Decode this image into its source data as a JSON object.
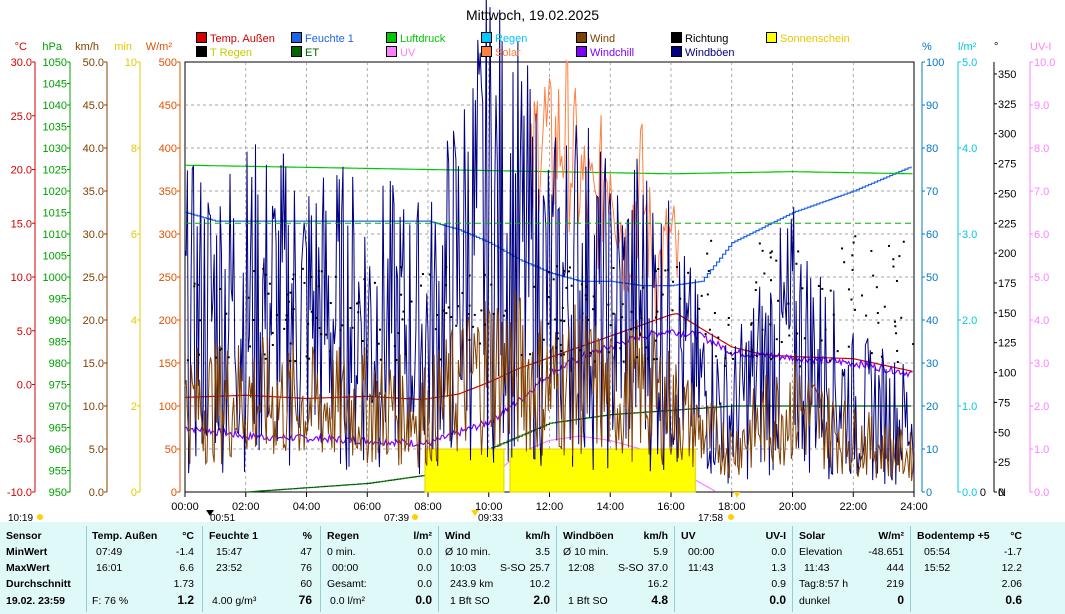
{
  "title": "Mittwoch, 19.02.2025",
  "legend": [
    {
      "label": "Temp. Außen",
      "color": "#d40000"
    },
    {
      "label": "T Regen",
      "color": "#000000",
      "text_color": "#c8c800"
    },
    {
      "label": "Feuchte 1",
      "color": "#1e64e6"
    },
    {
      "label": "ET",
      "color": "#006400"
    },
    {
      "label": "Luftdruck",
      "color": "#00c800"
    },
    {
      "label": "UV",
      "color": "#ff80ff"
    },
    {
      "label": "Regen",
      "color": "#00c8ff"
    },
    {
      "label": "Solar",
      "color": "#ff8040"
    },
    {
      "label": "Wind",
      "color": "#804000"
    },
    {
      "label": "Windchill",
      "color": "#8000ff"
    },
    {
      "label": "Richtung",
      "color": "#000000"
    },
    {
      "label": "Windböen",
      "color": "#000080"
    },
    {
      "label": "Sonnenschein",
      "color": "#ffff00",
      "text_color": "#e6c800"
    }
  ],
  "axes_left": [
    {
      "unit": "°C",
      "color": "#d40000",
      "ticks": [
        "30.0",
        "25.0",
        "20.0",
        "15.0",
        "10.0",
        "5.0",
        "0.0",
        "-5.0",
        "-10.0"
      ]
    },
    {
      "unit": "hPa",
      "color": "#00a000",
      "ticks": [
        "1050",
        "1045",
        "1040",
        "1035",
        "1030",
        "1025",
        "1020",
        "1015",
        "1010",
        "1005",
        "1000",
        "995",
        "990",
        "985",
        "980",
        "975",
        "970",
        "965",
        "960",
        "955",
        "950"
      ]
    },
    {
      "unit": "km/h",
      "color": "#804000",
      "ticks": [
        "50.0",
        "45.0",
        "40.0",
        "35.0",
        "30.0",
        "25.0",
        "20.0",
        "15.0",
        "10.0",
        "5.0",
        "0.0"
      ]
    },
    {
      "unit": "min",
      "color": "#e6c800",
      "ticks": [
        "10",
        "8",
        "6",
        "4",
        "2",
        "0"
      ]
    },
    {
      "unit": "W/m²",
      "color": "#e05000",
      "ticks": [
        "500",
        "450",
        "400",
        "350",
        "300",
        "250",
        "200",
        "150",
        "100",
        "50",
        "0"
      ]
    }
  ],
  "axes_right": [
    {
      "unit": "%",
      "color": "#0078c8",
      "ticks": [
        "100",
        "90",
        "80",
        "70",
        "60",
        "50",
        "40",
        "30",
        "20",
        "10",
        "0"
      ]
    },
    {
      "unit": "l/m²",
      "color": "#00c8e6",
      "ticks": [
        "5.0",
        "4.0",
        "3.0",
        "2.0",
        "1.0",
        "0.0"
      ]
    },
    {
      "unit": "°",
      "color": "#000000",
      "ticks": [
        "350",
        "325",
        "300",
        "275",
        "250",
        "225",
        "200",
        "175",
        "150",
        "125",
        "100",
        "75",
        "50",
        "25",
        "0"
      ],
      "bottom_label": "N"
    },
    {
      "unit": "UV-I",
      "color": "#ff80ff",
      "ticks": [
        "10.0",
        "9.0",
        "8.0",
        "7.0",
        "6.0",
        "5.0",
        "4.0",
        "3.0",
        "2.0",
        "1.0",
        "0.0"
      ]
    }
  ],
  "time_markers": {
    "left": "10:19",
    "sunrise": "00:51",
    "dawn": "07:39",
    "moon": "09:33",
    "sunset": "17:58"
  },
  "chart_data": {
    "type": "line",
    "x_ticks": [
      "00:00",
      "02:00",
      "04:00",
      "06:00",
      "08:00",
      "10:00",
      "12:00",
      "14:00",
      "16:00",
      "18:00",
      "20:00",
      "22:00",
      "24:00"
    ],
    "x_range_h": [
      0,
      24
    ],
    "series": [
      {
        "name": "Temp. Außen",
        "axis": "°C",
        "color": "#d40000",
        "x": [
          0,
          2,
          4,
          6,
          7.8,
          9,
          10,
          11,
          12,
          13,
          14,
          15,
          16,
          16.2,
          17,
          18,
          19,
          20,
          22,
          24
        ],
        "y": [
          -1.2,
          -1.0,
          -1.3,
          -1.1,
          -1.4,
          -0.9,
          0.2,
          1.5,
          2.5,
          3.5,
          4.5,
          5.5,
          6.5,
          6.6,
          5.2,
          3.5,
          2.8,
          2.6,
          2.4,
          1.2
        ]
      },
      {
        "name": "Feuchte 1",
        "axis": "%",
        "color": "#1e64e6",
        "x": [
          0,
          1,
          2,
          4,
          6,
          8,
          9,
          10,
          11,
          12,
          13,
          14,
          15,
          16,
          17,
          18,
          20,
          22,
          24
        ],
        "y": [
          65,
          63,
          63,
          63,
          63,
          63,
          61,
          58,
          54,
          51,
          49,
          49,
          48,
          48,
          49,
          58,
          65,
          70,
          76
        ]
      },
      {
        "name": "Luftdruck",
        "axis": "hPa",
        "color": "#00c800",
        "x": [
          0,
          4,
          8,
          12,
          16,
          20,
          24
        ],
        "y": [
          1026,
          1025.5,
          1025,
          1024.5,
          1024,
          1024.5,
          1024
        ]
      },
      {
        "name": "Windchill",
        "axis": "°C",
        "color": "#8000ff",
        "x": [
          0,
          2,
          4,
          6,
          8,
          9,
          10,
          11,
          12,
          13,
          14,
          15,
          16,
          17,
          18,
          20,
          22,
          24
        ],
        "y": [
          -4.0,
          -4.8,
          -5.0,
          -5.2,
          -5.5,
          -4.5,
          -3.5,
          -1.5,
          1.0,
          2.5,
          3.5,
          4.5,
          5.0,
          4.5,
          3.0,
          2.5,
          2.0,
          1.0
        ]
      },
      {
        "name": "Solar",
        "axis": "W/m²",
        "color": "#ff8040",
        "x": [
          11.4,
          11.7,
          12.0,
          12.5,
          13.0,
          13.5,
          14.0,
          14.5,
          15.0,
          15.5,
          16.0,
          16.3
        ],
        "y": [
          350,
          444,
          390,
          420,
          360,
          320,
          400,
          280,
          360,
          250,
          290,
          250
        ]
      },
      {
        "name": "UV",
        "axis": "UV-I",
        "color": "#ff80ff",
        "x": [
          8,
          10,
          11,
          12,
          13,
          14,
          15,
          16,
          17,
          17.5
        ],
        "y": [
          0.1,
          0.3,
          0.9,
          1.2,
          1.3,
          1.2,
          1.0,
          0.6,
          0.2,
          0.0
        ]
      },
      {
        "name": "ET",
        "axis": "l/m²",
        "color": "#006400",
        "x": [
          2,
          6,
          8,
          10,
          12,
          14,
          16,
          18,
          24
        ],
        "y": [
          0.0,
          0.1,
          0.2,
          0.5,
          0.8,
          0.9,
          0.95,
          1.0,
          1.0
        ]
      },
      {
        "name": "Sonnenschein",
        "axis": "min",
        "color": "#ffff00",
        "x": [
          7.9,
          10.5,
          10.7,
          16.8
        ],
        "y": [
          1,
          1,
          1,
          1
        ]
      },
      {
        "name": "Windböen",
        "axis": "km/h",
        "color": "#000080",
        "x": [
          0,
          2,
          4,
          6,
          8,
          9,
          10,
          11,
          12,
          13,
          14,
          15,
          16,
          17,
          18,
          19,
          20,
          22,
          24
        ],
        "y": [
          20,
          22,
          21,
          20,
          18,
          25,
          32,
          28,
          22,
          25,
          20,
          22,
          18,
          12,
          9,
          14,
          18,
          10,
          8
        ]
      },
      {
        "name": "Wind",
        "axis": "km/h",
        "color": "#804000",
        "x": [
          0,
          2,
          4,
          6,
          8,
          9,
          10,
          11,
          12,
          13,
          14,
          15,
          16,
          17,
          18,
          19,
          20,
          22,
          24
        ],
        "y": [
          10,
          11,
          10,
          10,
          9,
          12,
          15,
          14,
          12,
          13,
          11,
          12,
          10,
          7,
          5,
          8,
          10,
          6,
          4
        ]
      }
    ]
  },
  "stats": {
    "sensor": {
      "title": "Sensor",
      "rows": [
        "MinWert",
        "MaxWert",
        "Durchschnitt"
      ],
      "footer": "19.02. 23:59"
    },
    "temp": {
      "title": "Temp. Außen",
      "unit": "°C",
      "min_t": "07:49",
      "min": "-1.4",
      "max_t": "16:01",
      "max": "6.6",
      "avg": "1.73",
      "footer_l": "F: 76 %",
      "footer_v": "1.2"
    },
    "feuchte": {
      "title": "Feuchte 1",
      "unit": "%",
      "min_t": "15:47",
      "min": "47",
      "max_t": "23:52",
      "max": "76",
      "avg": "60",
      "footer_l": "4.00 g/m³",
      "footer_v": "76"
    },
    "regen": {
      "title": "Regen",
      "unit": "l/m²",
      "r1l": "0 min.",
      "r1v": "0.0",
      "r2l": "00:00",
      "r2v": "0.0",
      "r3l": "Gesamt:",
      "r3v": "0.0",
      "footer_l": "0.0 l/m²",
      "footer_v": "0.0"
    },
    "wind": {
      "title": "Wind",
      "unit": "km/h",
      "r1l": "Ø 10 min.",
      "r1v": "3.5",
      "r2l": "10:03",
      "r2m": "S-SO",
      "r2v": "25.7",
      "r3l": "243.9 km",
      "r3v": "10.2",
      "footer_l": "1 Bft SO",
      "footer_v": "2.0"
    },
    "boeen": {
      "title": "Windböen",
      "unit": "km/h",
      "r1l": "Ø 10 min.",
      "r1v": "5.9",
      "r2l": "12:08",
      "r2m": "S-SO",
      "r2v": "37.0",
      "r3v": "16.2",
      "footer_l": "1 Bft SO",
      "footer_v": "4.8"
    },
    "uv": {
      "title": "UV",
      "unit": "UV-I",
      "r1l": "00:00",
      "r1v": "0.0",
      "r2l": "11:43",
      "r2v": "1.3",
      "r3v": "0.9",
      "footer_v": "0.0"
    },
    "solar": {
      "title": "Solar",
      "unit": "W/m²",
      "r1l": "Elevation",
      "r1v": "-48.651",
      "r2l": "11:43",
      "r2v": "444",
      "r3l": "Tag:8:57 h",
      "r3v": "219",
      "footer_l": "dunkel",
      "footer_v": "0"
    },
    "boden": {
      "title": "Bodentemp +5",
      "unit": "°C",
      "r1l": "05:54",
      "r1v": "-1.7",
      "r2l": "15:52",
      "r2v": "12.2",
      "r3v": "2.06",
      "footer_v": "0.6"
    }
  }
}
